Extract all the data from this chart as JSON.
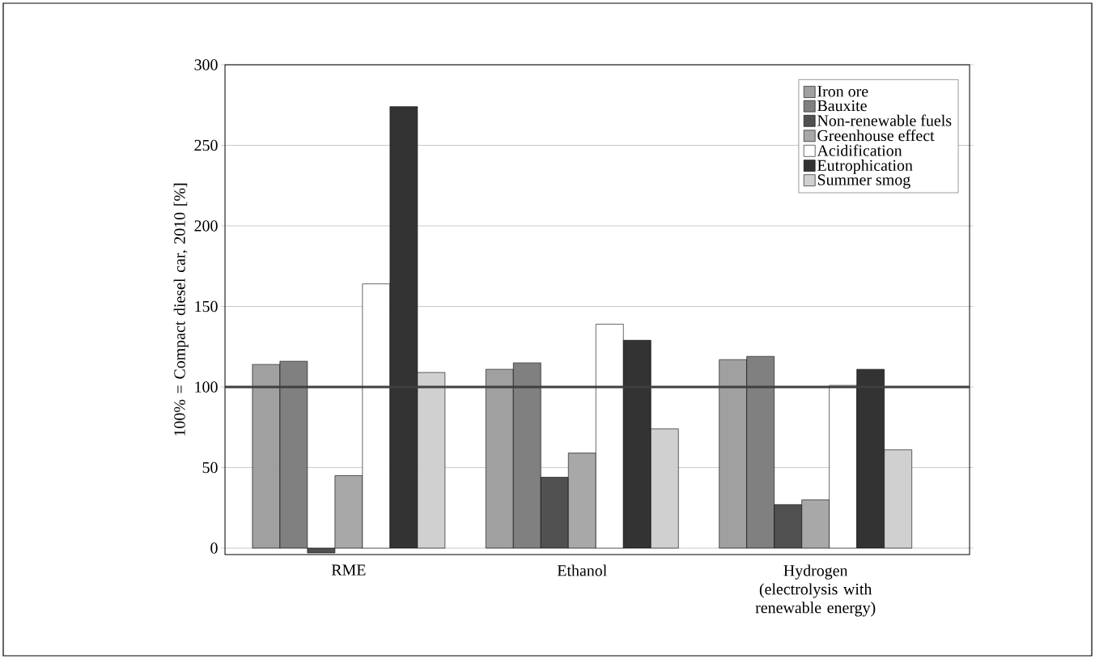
{
  "chart_data": {
    "type": "bar",
    "ylabel": "100% = Compact diesel car, 2010 [%]",
    "categories": [
      "RME",
      "Ethanol",
      "Hydrogen (electrolysis with renewable energy)"
    ],
    "series": [
      {
        "name": "Iron ore",
        "color": "#a0a0a0",
        "values": [
          114,
          111,
          117
        ]
      },
      {
        "name": "Bauxite",
        "color": "#808080",
        "values": [
          116,
          115,
          119
        ]
      },
      {
        "name": "Non-renewable fuels",
        "color": "#505050",
        "values": [
          -3,
          44,
          27
        ]
      },
      {
        "name": "Greenhouse effect",
        "color": "#a8a8a8",
        "values": [
          45,
          59,
          30
        ]
      },
      {
        "name": "Acidification",
        "color": "#ffffff",
        "values": [
          164,
          139,
          101
        ]
      },
      {
        "name": "Eutrophication",
        "color": "#333333",
        "values": [
          274,
          129,
          111
        ]
      },
      {
        "name": "Summer smog",
        "color": "#d0d0d0",
        "values": [
          109,
          74,
          61
        ]
      }
    ],
    "ylim": [
      -4,
      300
    ],
    "yticks": [
      0,
      50,
      100,
      150,
      200,
      250,
      300
    ],
    "ref_lines": [
      {
        "axis": "y",
        "value": 100,
        "color": "#404040"
      }
    ],
    "grid": "y",
    "legend": "top right"
  }
}
